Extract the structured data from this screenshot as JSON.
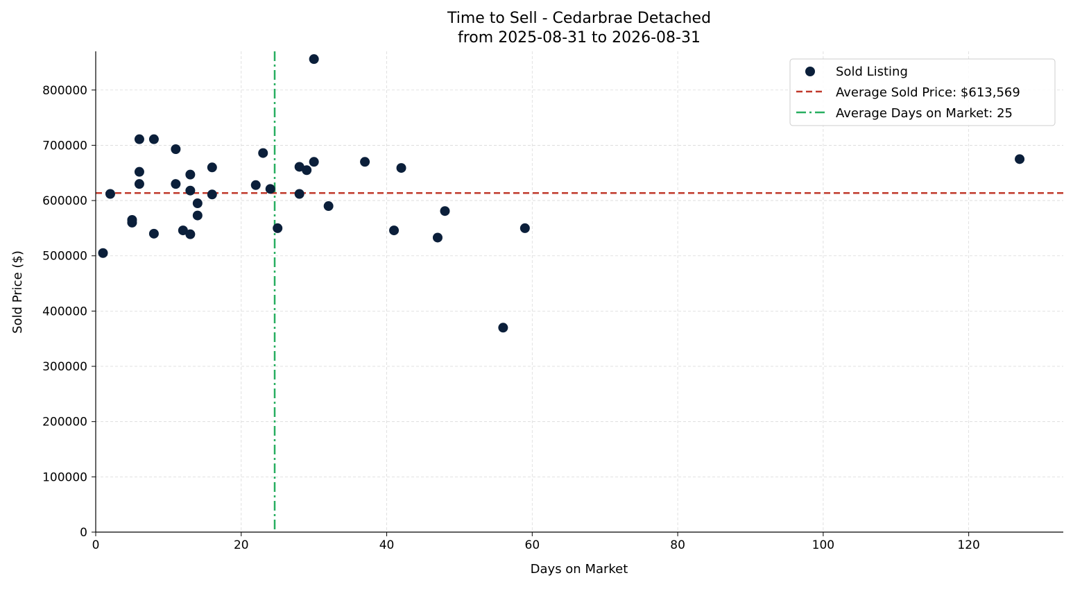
{
  "chart_data": {
    "type": "scatter",
    "title": "Time to Sell - Cedarbrae Detached",
    "subtitle": "from 2025-08-31 to 2026-08-31",
    "xlabel": "Days on Market",
    "ylabel": "Sold Price ($)",
    "xlim": [
      0,
      133
    ],
    "ylim": [
      0,
      870000
    ],
    "x_ticks": [
      0,
      20,
      40,
      60,
      80,
      100,
      120
    ],
    "y_ticks": [
      0,
      100000,
      200000,
      300000,
      400000,
      500000,
      600000,
      700000,
      800000
    ],
    "grid": true,
    "legend_position": "top-right",
    "series": [
      {
        "name": "Sold Listing",
        "color": "#0b1f3a",
        "points": [
          {
            "x": 1,
            "y": 505000
          },
          {
            "x": 2,
            "y": 612000
          },
          {
            "x": 5,
            "y": 565000
          },
          {
            "x": 5,
            "y": 560000
          },
          {
            "x": 6,
            "y": 711000
          },
          {
            "x": 6,
            "y": 652000
          },
          {
            "x": 6,
            "y": 630000
          },
          {
            "x": 8,
            "y": 711000
          },
          {
            "x": 8,
            "y": 540000
          },
          {
            "x": 11,
            "y": 693000
          },
          {
            "x": 11,
            "y": 630000
          },
          {
            "x": 12,
            "y": 546000
          },
          {
            "x": 13,
            "y": 647000
          },
          {
            "x": 13,
            "y": 618000
          },
          {
            "x": 13,
            "y": 539000
          },
          {
            "x": 14,
            "y": 595000
          },
          {
            "x": 14,
            "y": 573000
          },
          {
            "x": 16,
            "y": 660000
          },
          {
            "x": 16,
            "y": 611000
          },
          {
            "x": 22,
            "y": 628000
          },
          {
            "x": 23,
            "y": 686000
          },
          {
            "x": 24,
            "y": 621000
          },
          {
            "x": 25,
            "y": 550000
          },
          {
            "x": 28,
            "y": 661000
          },
          {
            "x": 28,
            "y": 612000
          },
          {
            "x": 29,
            "y": 655000
          },
          {
            "x": 30,
            "y": 856000
          },
          {
            "x": 30,
            "y": 670000
          },
          {
            "x": 32,
            "y": 590000
          },
          {
            "x": 37,
            "y": 670000
          },
          {
            "x": 41,
            "y": 546000
          },
          {
            "x": 42,
            "y": 659000
          },
          {
            "x": 47,
            "y": 533000
          },
          {
            "x": 48,
            "y": 581000
          },
          {
            "x": 56,
            "y": 370000
          },
          {
            "x": 59,
            "y": 550000
          },
          {
            "x": 127,
            "y": 675000
          }
        ]
      }
    ],
    "reference_lines": [
      {
        "orientation": "horizontal",
        "value": 613569,
        "style": "dashed",
        "color": "#c0392b",
        "label": "Average Sold Price: $613,569"
      },
      {
        "orientation": "vertical",
        "value": 24.6,
        "style": "dashdot",
        "color": "#27ae60",
        "label": "Average Days on Market: 25"
      }
    ]
  }
}
